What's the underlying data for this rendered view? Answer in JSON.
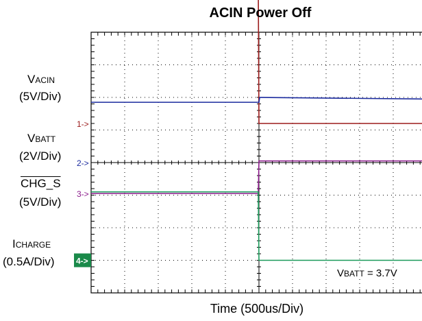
{
  "title": "ACIN Power Off",
  "xlabel": "Time (500us/Div)",
  "labels": {
    "vacin_main": "V",
    "vacin_sub": "ACIN",
    "vacin_scale": "(5V/Div)",
    "vbatt_main": "V",
    "vbatt_sub": "BATT",
    "vbatt_scale": "(2V/Div)",
    "chg_main": "CHG_S",
    "chg_scale": "(5V/Div)",
    "ichg_main": "I",
    "ichg_sub": "CHARGE",
    "ichg_scale": "(0.5A/Div)"
  },
  "markers": {
    "ch1": "1->",
    "ch2": "2->",
    "ch3": "3->",
    "ch4": "4->"
  },
  "note": {
    "main": "V",
    "sub": "BATT",
    "rest": " = 3.7V"
  },
  "colors": {
    "ch1": "#9b1b1b",
    "ch2": "#1a2a9e",
    "ch3": "#8b1a8b",
    "ch4": "#1a9a5a",
    "ch4_marker_bg": "#1a8a4a",
    "grid": "#000000"
  },
  "chart_data": {
    "type": "line",
    "title": "ACIN Power Off",
    "xlabel": "Time (500us/Div)",
    "x_divisions": 10,
    "y_divisions": 8,
    "xlim": [
      0,
      10
    ],
    "event_time_div": 5.0,
    "grid": true,
    "series": [
      {
        "name": "VACIN",
        "scale": "5V/Div",
        "ground_div": 2.8,
        "points": [
          [
            0,
            4.2
          ],
          [
            4.98,
            4.2
          ],
          [
            5.0,
            0.0
          ],
          [
            10,
            0.0
          ]
        ]
      },
      {
        "name": "VBATT",
        "scale": "2V/Div",
        "ground_div": 4.0,
        "points": [
          [
            0,
            1.85
          ],
          [
            5.0,
            1.85
          ],
          [
            5.02,
            2.0
          ],
          [
            10,
            1.95
          ]
        ]
      },
      {
        "name": "CHG_S",
        "scale": "5V/Div",
        "ground_div": 4.95,
        "points": [
          [
            0,
            0.0
          ],
          [
            4.98,
            0.0
          ],
          [
            5.0,
            1.0
          ],
          [
            10,
            1.0
          ]
        ]
      },
      {
        "name": "ICHARGE",
        "scale": "0.5A/Div",
        "ground_div": 7.0,
        "points": [
          [
            0,
            2.1
          ],
          [
            4.98,
            2.1
          ],
          [
            5.0,
            0.0
          ],
          [
            10,
            0.0
          ]
        ]
      }
    ]
  }
}
